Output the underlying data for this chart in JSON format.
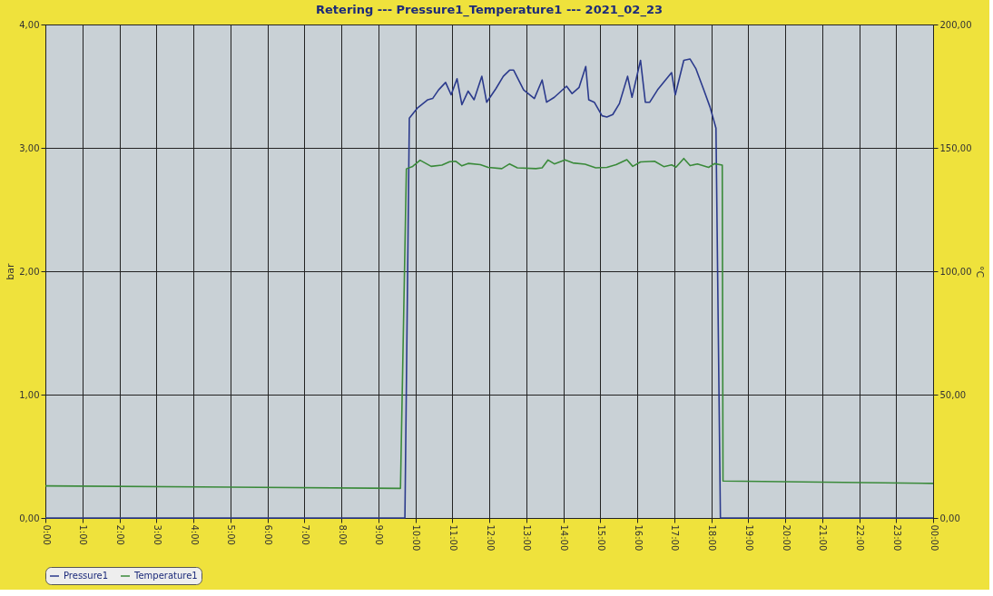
{
  "chart_data": {
    "type": "line",
    "title": "Retering --- Pressure1_Temperature1 --- 2021_02_23",
    "ylabel": "bar",
    "y2label": "°C",
    "xlim": [
      0,
      24
    ],
    "xticks": [
      {
        "value": 0,
        "label": "0:00"
      },
      {
        "value": 1,
        "label": "1:00"
      },
      {
        "value": 2,
        "label": "2:00"
      },
      {
        "value": 3,
        "label": "3:00"
      },
      {
        "value": 4,
        "label": "4:00"
      },
      {
        "value": 5,
        "label": "5:00"
      },
      {
        "value": 6,
        "label": "6:00"
      },
      {
        "value": 7,
        "label": "7:00"
      },
      {
        "value": 8,
        "label": "8:00"
      },
      {
        "value": 9,
        "label": "9:00"
      },
      {
        "value": 10,
        "label": "10:00"
      },
      {
        "value": 11,
        "label": "11:00"
      },
      {
        "value": 12,
        "label": "12:00"
      },
      {
        "value": 13,
        "label": "13:00"
      },
      {
        "value": 14,
        "label": "14:00"
      },
      {
        "value": 15,
        "label": "15:00"
      },
      {
        "value": 16,
        "label": "16:00"
      },
      {
        "value": 17,
        "label": "17:00"
      },
      {
        "value": 18,
        "label": "18:00"
      },
      {
        "value": 19,
        "label": "19:00"
      },
      {
        "value": 20,
        "label": "20:00"
      },
      {
        "value": 21,
        "label": "21:00"
      },
      {
        "value": 22,
        "label": "22:00"
      },
      {
        "value": 23,
        "label": "23:00"
      },
      {
        "value": 24,
        "label": "00:00"
      }
    ],
    "ylim": [
      0,
      4
    ],
    "yticks": [
      {
        "value": 0,
        "label": "0,00"
      },
      {
        "value": 1,
        "label": "1,00"
      },
      {
        "value": 2,
        "label": "2,00"
      },
      {
        "value": 3,
        "label": "3,00"
      },
      {
        "value": 4,
        "label": "4,00"
      }
    ],
    "y2lim": [
      0,
      200
    ],
    "y2ticks": [
      {
        "value": 0,
        "label": "0,00"
      },
      {
        "value": 50,
        "label": "50,00"
      },
      {
        "value": 100,
        "label": "100,00"
      },
      {
        "value": 150,
        "label": "150,00"
      },
      {
        "value": 200,
        "label": "200,00"
      }
    ],
    "grid": true,
    "legend": "bottom",
    "line_style": "solid",
    "series": [
      {
        "name": "Pressure1",
        "color": "#2b3a8c",
        "x": [
          0,
          9.72,
          9.84,
          10.05,
          10.34,
          10.47,
          10.63,
          10.82,
          10.97,
          11.13,
          11.26,
          11.43,
          11.59,
          11.8,
          11.93,
          12.18,
          12.38,
          12.55,
          12.66,
          12.93,
          13.22,
          13.43,
          13.55,
          13.76,
          14.09,
          14.24,
          14.43,
          14.61,
          14.69,
          14.84,
          15.05,
          15.18,
          15.34,
          15.52,
          15.74,
          15.86,
          16.09,
          16.22,
          16.34,
          16.55,
          16.93,
          17.03,
          17.26,
          17.43,
          17.59,
          17.8,
          17.97,
          18.13,
          18.25,
          24
        ],
        "values": [
          0,
          0,
          3.24,
          3.32,
          3.39,
          3.4,
          3.47,
          3.53,
          3.43,
          3.56,
          3.35,
          3.46,
          3.39,
          3.58,
          3.37,
          3.48,
          3.58,
          3.63,
          3.63,
          3.47,
          3.4,
          3.55,
          3.37,
          3.41,
          3.5,
          3.44,
          3.49,
          3.66,
          3.39,
          3.37,
          3.26,
          3.25,
          3.27,
          3.36,
          3.58,
          3.41,
          3.71,
          3.37,
          3.37,
          3.47,
          3.61,
          3.43,
          3.71,
          3.72,
          3.64,
          3.47,
          3.33,
          3.16,
          0,
          0
        ]
      },
      {
        "name": "Temperature1",
        "color": "#3a8a3a",
        "axis": "y2",
        "x": [
          0,
          9.6,
          9.76,
          9.93,
          10.13,
          10.43,
          10.72,
          10.93,
          11.09,
          11.26,
          11.43,
          11.76,
          11.97,
          12.34,
          12.55,
          12.76,
          13.26,
          13.43,
          13.59,
          13.76,
          14.05,
          14.26,
          14.59,
          14.88,
          15.18,
          15.43,
          15.72,
          15.88,
          16.09,
          16.47,
          16.72,
          16.93,
          17.05,
          17.26,
          17.43,
          17.63,
          17.93,
          18.09,
          18.3,
          18.32,
          24
        ],
        "values": [
          13,
          12,
          141.5,
          142.5,
          145,
          142.5,
          143,
          144.4,
          144.6,
          142.7,
          143.7,
          143.2,
          142.1,
          141.6,
          143.5,
          141.9,
          141.6,
          141.9,
          145.1,
          143.5,
          145.1,
          143.9,
          143.4,
          141.9,
          142.1,
          143.2,
          145.2,
          142.5,
          144.3,
          144.6,
          142.4,
          143.1,
          142.2,
          145.7,
          142.8,
          143.5,
          142.1,
          143.6,
          143,
          15,
          14
        ]
      }
    ]
  }
}
